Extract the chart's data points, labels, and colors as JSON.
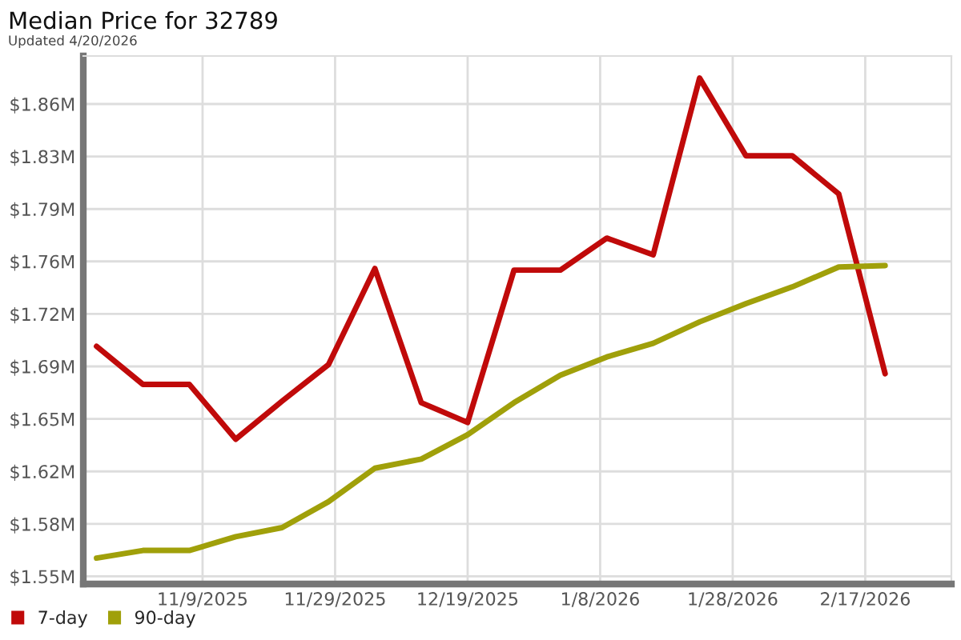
{
  "chart_data": {
    "type": "line",
    "title": "Median Price for 32789",
    "subtitle": "Updated 4/20/2026",
    "x": [
      "2025-10-24",
      "2025-10-31",
      "2025-11-07",
      "2025-11-14",
      "2025-11-21",
      "2025-11-28",
      "2025-12-05",
      "2025-12-12",
      "2025-12-19",
      "2025-12-26",
      "2026-01-02",
      "2026-01-09",
      "2026-01-16",
      "2026-01-23",
      "2026-01-30",
      "2026-02-06",
      "2026-02-13",
      "2026-02-20"
    ],
    "series": [
      {
        "name": "7-day",
        "color": "#c00a0a",
        "values": [
          1.701,
          1.676,
          1.676,
          1.64,
          1.665,
          1.689,
          1.752,
          1.664,
          1.651,
          1.751,
          1.751,
          1.772,
          1.761,
          1.877,
          1.826,
          1.826,
          1.801,
          1.683
        ]
      },
      {
        "name": "90-day",
        "color": "#a0a00a",
        "values": [
          1.562,
          1.567,
          1.567,
          1.576,
          1.582,
          1.599,
          1.621,
          1.627,
          1.643,
          1.664,
          1.682,
          1.694,
          1.703,
          1.717,
          1.729,
          1.74,
          1.753,
          1.754
        ]
      }
    ],
    "xlim": [
      "2025-10-22",
      "2026-03-02"
    ],
    "xticks": [
      {
        "value": "2025-11-09",
        "label": "11/9/2025"
      },
      {
        "value": "2025-11-29",
        "label": "11/29/2025"
      },
      {
        "value": "2025-12-19",
        "label": "12/19/2025"
      },
      {
        "value": "2026-01-08",
        "label": "1/8/2026"
      },
      {
        "value": "2026-01-28",
        "label": "1/28/2026"
      },
      {
        "value": "2026-02-17",
        "label": "2/17/2026"
      }
    ],
    "ylim": [
      1.545,
      1.8915
    ],
    "yticks": [
      {
        "value": 1.55,
        "label": "$1.55M"
      },
      {
        "value": 1.5844,
        "label": "$1.58M"
      },
      {
        "value": 1.6189,
        "label": "$1.62M"
      },
      {
        "value": 1.6533,
        "label": "$1.65M"
      },
      {
        "value": 1.6878,
        "label": "$1.69M"
      },
      {
        "value": 1.7222,
        "label": "$1.72M"
      },
      {
        "value": 1.7567,
        "label": "$1.76M"
      },
      {
        "value": 1.7911,
        "label": "$1.79M"
      },
      {
        "value": 1.8256,
        "label": "$1.83M"
      },
      {
        "value": 1.86,
        "label": "$1.86M"
      }
    ],
    "grid": true,
    "legend": "bottom left",
    "marker": "none",
    "line_style": "solid"
  }
}
